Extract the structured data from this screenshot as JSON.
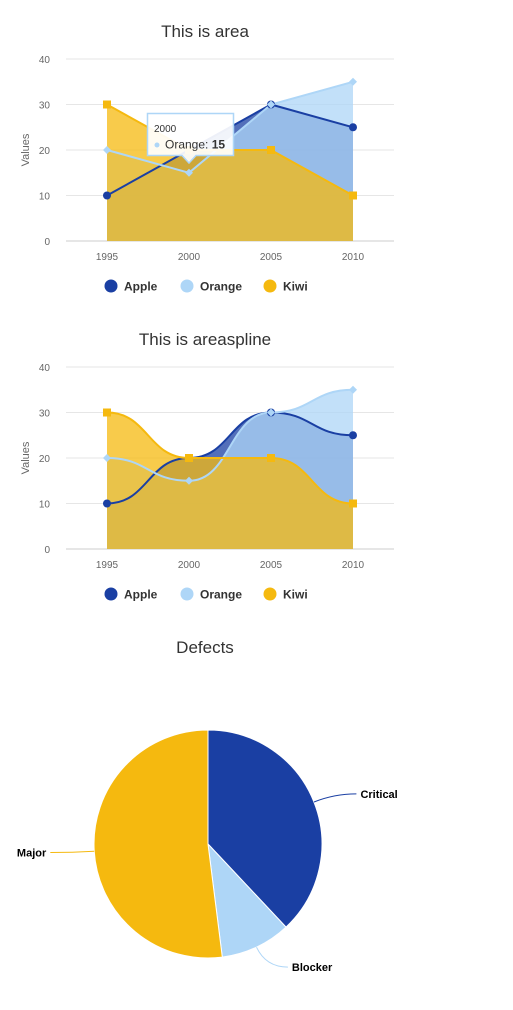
{
  "chart_data": [
    {
      "type": "area",
      "title": "This is area",
      "ylabel": "Values",
      "xlabel": "",
      "ylim": [
        0,
        40
      ],
      "yticks": [
        0,
        10,
        20,
        30,
        40
      ],
      "categories": [
        "1995",
        "2000",
        "2005",
        "2010"
      ],
      "grid": true,
      "legend_position": "bottom",
      "series": [
        {
          "name": "Apple",
          "values": [
            10,
            20,
            30,
            25
          ],
          "color": "#1a3fa3",
          "marker": "circle"
        },
        {
          "name": "Orange",
          "values": [
            20,
            15,
            30,
            35
          ],
          "color": "#aed6f7",
          "marker": "diamond"
        },
        {
          "name": "Kiwi",
          "values": [
            30,
            20,
            20,
            10
          ],
          "color": "#f5b90f",
          "marker": "square"
        }
      ],
      "tooltip": {
        "header": "2000",
        "series": "Orange",
        "value": "15",
        "sep": ": "
      }
    },
    {
      "type": "areaspline",
      "title": "This is areaspline",
      "ylabel": "Values",
      "xlabel": "",
      "ylim": [
        0,
        40
      ],
      "yticks": [
        0,
        10,
        20,
        30,
        40
      ],
      "categories": [
        "1995",
        "2000",
        "2005",
        "2010"
      ],
      "grid": true,
      "legend_position": "bottom",
      "series": [
        {
          "name": "Apple",
          "values": [
            10,
            20,
            30,
            25
          ],
          "color": "#1a3fa3",
          "marker": "circle"
        },
        {
          "name": "Orange",
          "values": [
            20,
            15,
            30,
            35
          ],
          "color": "#aed6f7",
          "marker": "diamond"
        },
        {
          "name": "Kiwi",
          "values": [
            30,
            20,
            20,
            10
          ],
          "color": "#f5b90f",
          "marker": "square"
        }
      ]
    },
    {
      "type": "pie",
      "title": "Defects",
      "slices": [
        {
          "name": "Critical",
          "value": 38,
          "color": "#1a3fa3"
        },
        {
          "name": "Blocker",
          "value": 10,
          "color": "#aed6f7"
        },
        {
          "name": "Major",
          "value": 52,
          "color": "#f5b90f"
        }
      ]
    }
  ]
}
